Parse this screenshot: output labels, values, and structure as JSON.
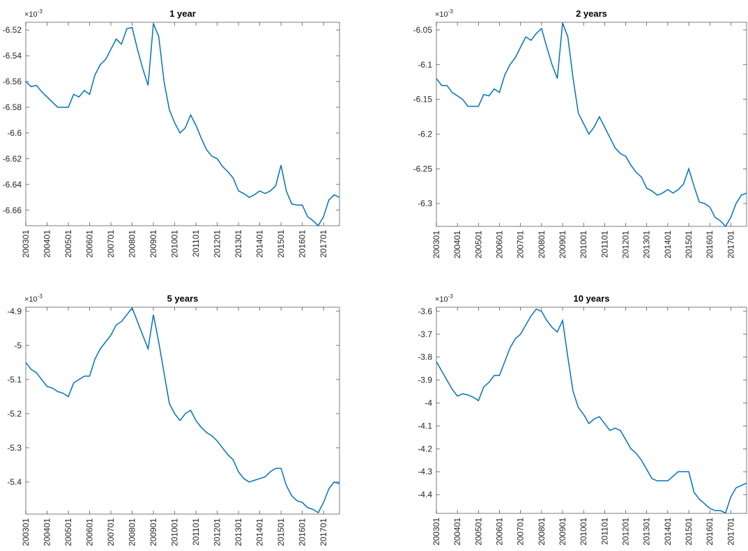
{
  "chart_data": [
    {
      "type": "line",
      "title": "1 year",
      "exponent_base": "×10",
      "exponent_power": "-3",
      "categories": [
        "200301",
        null,
        null,
        null,
        "200401",
        null,
        null,
        null,
        "200501",
        null,
        null,
        null,
        "200601",
        null,
        null,
        null,
        "200701",
        null,
        null,
        null,
        "200801",
        null,
        null,
        null,
        "200901",
        null,
        null,
        null,
        "201001",
        null,
        null,
        null,
        "201101",
        null,
        null,
        null,
        "201201",
        null,
        null,
        null,
        "201301",
        null,
        null,
        null,
        "201401",
        null,
        null,
        null,
        "201501",
        null,
        null,
        null,
        "201601",
        null,
        null,
        null,
        "201701",
        null,
        null,
        null
      ],
      "series": [
        {
          "color": "#0072bd",
          "values": [
            -6.56,
            -6.564,
            -6.563,
            -6.568,
            -6.572,
            -6.576,
            -6.58,
            -6.58,
            -6.58,
            -6.57,
            -6.572,
            -6.567,
            -6.57,
            -6.555,
            -6.547,
            -6.543,
            -6.535,
            -6.527,
            -6.531,
            -6.519,
            -6.518,
            -6.535,
            -6.55,
            -6.563,
            -6.515,
            -6.525,
            -6.56,
            -6.582,
            -6.592,
            -6.6,
            -6.596,
            -6.586,
            -6.594,
            -6.604,
            -6.613,
            -6.618,
            -6.62,
            -6.626,
            -6.63,
            -6.635,
            -6.645,
            -6.647,
            -6.65,
            -6.648,
            -6.645,
            -6.647,
            -6.645,
            -6.641,
            -6.625,
            -6.645,
            -6.655,
            -6.656,
            -6.656,
            -6.665,
            -6.668,
            -6.672,
            -6.665,
            -6.652,
            -6.648,
            -6.65
          ]
        }
      ],
      "ylim": [
        -6.672,
        -6.514
      ],
      "yticks": [
        -6.52,
        -6.54,
        -6.56,
        -6.58,
        -6.6,
        -6.62,
        -6.64,
        -6.66
      ]
    },
    {
      "type": "line",
      "title": "2 years",
      "exponent_base": "×10",
      "exponent_power": "-3",
      "categories": [
        "200301",
        null,
        null,
        null,
        "200401",
        null,
        null,
        null,
        "200501",
        null,
        null,
        null,
        "200601",
        null,
        null,
        null,
        "200701",
        null,
        null,
        null,
        "200801",
        null,
        null,
        null,
        "200901",
        null,
        null,
        null,
        "201001",
        null,
        null,
        null,
        "201101",
        null,
        null,
        null,
        "201201",
        null,
        null,
        null,
        "201301",
        null,
        null,
        null,
        "201401",
        null,
        null,
        null,
        "201501",
        null,
        null,
        null,
        "201601",
        null,
        null,
        null,
        "201701",
        null,
        null,
        null
      ],
      "series": [
        {
          "color": "#0072bd",
          "values": [
            -6.12,
            -6.13,
            -6.13,
            -6.14,
            -6.145,
            -6.15,
            -6.16,
            -6.16,
            -6.16,
            -6.143,
            -6.145,
            -6.135,
            -6.14,
            -6.115,
            -6.1,
            -6.09,
            -6.075,
            -6.06,
            -6.065,
            -6.055,
            -6.048,
            -6.075,
            -6.1,
            -6.12,
            -6.04,
            -6.06,
            -6.12,
            -6.17,
            -6.185,
            -6.2,
            -6.19,
            -6.175,
            -6.19,
            -6.205,
            -6.22,
            -6.228,
            -6.232,
            -6.245,
            -6.255,
            -6.262,
            -6.278,
            -6.282,
            -6.288,
            -6.285,
            -6.28,
            -6.285,
            -6.28,
            -6.272,
            -6.25,
            -6.275,
            -6.298,
            -6.3,
            -6.305,
            -6.32,
            -6.325,
            -6.333,
            -6.32,
            -6.3,
            -6.288,
            -6.285
          ]
        }
      ],
      "ylim": [
        -6.333,
        -6.039
      ],
      "yticks": [
        -6.05,
        -6.1,
        -6.15,
        -6.2,
        -6.25,
        -6.3
      ]
    },
    {
      "type": "line",
      "title": "5 years",
      "exponent_base": "×10",
      "exponent_power": "-3",
      "categories": [
        "200301",
        null,
        null,
        null,
        "200401",
        null,
        null,
        null,
        "200501",
        null,
        null,
        null,
        "200601",
        null,
        null,
        null,
        "200701",
        null,
        null,
        null,
        "200801",
        null,
        null,
        null,
        "200901",
        null,
        null,
        null,
        "201001",
        null,
        null,
        null,
        "201101",
        null,
        null,
        null,
        "201201",
        null,
        null,
        null,
        "201301",
        null,
        null,
        null,
        "201401",
        null,
        null,
        null,
        "201501",
        null,
        null,
        null,
        "201601",
        null,
        null,
        null,
        "201701",
        null,
        null,
        null
      ],
      "series": [
        {
          "color": "#0072bd",
          "values": [
            -5.05,
            -5.07,
            -5.08,
            -5.1,
            -5.12,
            -5.125,
            -5.135,
            -5.14,
            -5.15,
            -5.11,
            -5.1,
            -5.09,
            -5.09,
            -5.04,
            -5.01,
            -4.99,
            -4.97,
            -4.94,
            -4.93,
            -4.91,
            -4.89,
            -4.93,
            -4.97,
            -5.01,
            -4.91,
            -4.99,
            -5.08,
            -5.17,
            -5.2,
            -5.22,
            -5.2,
            -5.19,
            -5.22,
            -5.24,
            -5.255,
            -5.265,
            -5.28,
            -5.3,
            -5.32,
            -5.335,
            -5.37,
            -5.39,
            -5.4,
            -5.395,
            -5.39,
            -5.385,
            -5.37,
            -5.36,
            -5.36,
            -5.41,
            -5.44,
            -5.455,
            -5.46,
            -5.475,
            -5.48,
            -5.49,
            -5.46,
            -5.42,
            -5.4,
            -5.405
          ]
        }
      ],
      "ylim": [
        -5.494,
        -4.888
      ],
      "yticks": [
        -4.9,
        -5,
        -5.1,
        -5.2,
        -5.3,
        -5.4
      ]
    },
    {
      "type": "line",
      "title": "10 years",
      "exponent_base": "×10",
      "exponent_power": "-3",
      "categories": [
        "200301",
        null,
        null,
        null,
        "200401",
        null,
        null,
        null,
        "200501",
        null,
        null,
        null,
        "200601",
        null,
        null,
        null,
        "200701",
        null,
        null,
        null,
        "200801",
        null,
        null,
        null,
        "200901",
        null,
        null,
        null,
        "201001",
        null,
        null,
        null,
        "201101",
        null,
        null,
        null,
        "201201",
        null,
        null,
        null,
        "201301",
        null,
        null,
        null,
        "201401",
        null,
        null,
        null,
        "201501",
        null,
        null,
        null,
        "201601",
        null,
        null,
        null,
        "201701",
        null,
        null,
        null
      ],
      "series": [
        {
          "color": "#0072bd",
          "values": [
            -3.82,
            -3.86,
            -3.9,
            -3.94,
            -3.97,
            -3.96,
            -3.965,
            -3.975,
            -3.99,
            -3.93,
            -3.91,
            -3.88,
            -3.88,
            -3.82,
            -3.76,
            -3.72,
            -3.7,
            -3.66,
            -3.62,
            -3.59,
            -3.6,
            -3.64,
            -3.67,
            -3.69,
            -3.64,
            -3.8,
            -3.95,
            -4.02,
            -4.05,
            -4.09,
            -4.07,
            -4.06,
            -4.09,
            -4.12,
            -4.11,
            -4.12,
            -4.16,
            -4.2,
            -4.22,
            -4.25,
            -4.29,
            -4.33,
            -4.34,
            -4.34,
            -4.34,
            -4.32,
            -4.3,
            -4.3,
            -4.3,
            -4.39,
            -4.42,
            -4.44,
            -4.46,
            -4.47,
            -4.47,
            -4.48,
            -4.41,
            -4.37,
            -4.36,
            -4.35
          ]
        }
      ],
      "ylim": [
        -4.482,
        -3.582
      ],
      "yticks": [
        -3.6,
        -3.7,
        -3.8,
        -3.9,
        -4,
        -4.1,
        -4.2,
        -4.3,
        -4.4
      ]
    }
  ]
}
